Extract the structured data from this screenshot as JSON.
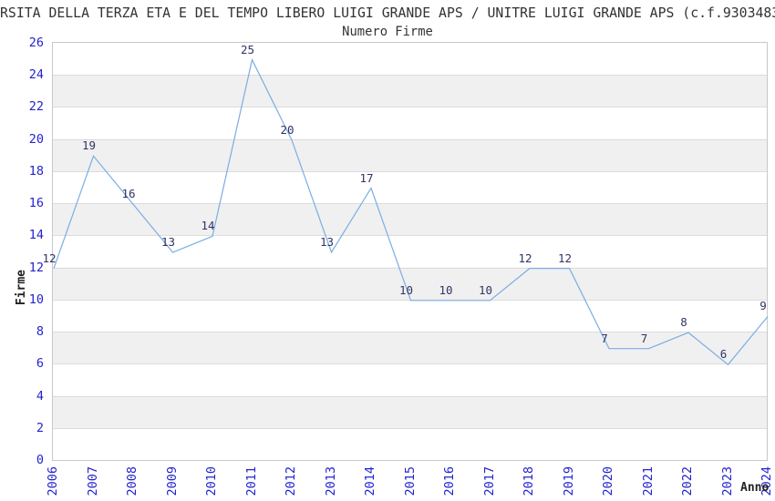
{
  "header": {
    "title": "RSITA DELLA TERZA ETA E DEL TEMPO LIBERO LUIGI GRANDE APS / UNITRE LUIGI GRANDE APS (c.f.9303483",
    "subtitle": "Numero Firme"
  },
  "chart_data": {
    "type": "line",
    "title": "Numero Firme",
    "xlabel": "Anno",
    "ylabel": "Firme",
    "categories": [
      "2006",
      "2007",
      "2008",
      "2009",
      "2010",
      "2011",
      "2012",
      "2013",
      "2014",
      "2015",
      "2016",
      "2017",
      "2018",
      "2019",
      "2020",
      "2021",
      "2022",
      "2023",
      "2024"
    ],
    "values": [
      12,
      19,
      16,
      13,
      14,
      25,
      20,
      13,
      17,
      10,
      10,
      10,
      12,
      12,
      7,
      7,
      8,
      6,
      9
    ],
    "ylim": [
      0,
      26
    ],
    "ytick_step": 2,
    "grid": "horizontal-bands-and-lines",
    "legend": "none",
    "point_labels_shown": true,
    "colors": {
      "line": "#7aade3",
      "tick_labels": "#2323cd",
      "point_labels": "#333366",
      "band_gray": "#f0f0f0",
      "gridline": "#dcdcdc",
      "plot_border": "#c8c8c8",
      "text": "#333333"
    }
  }
}
